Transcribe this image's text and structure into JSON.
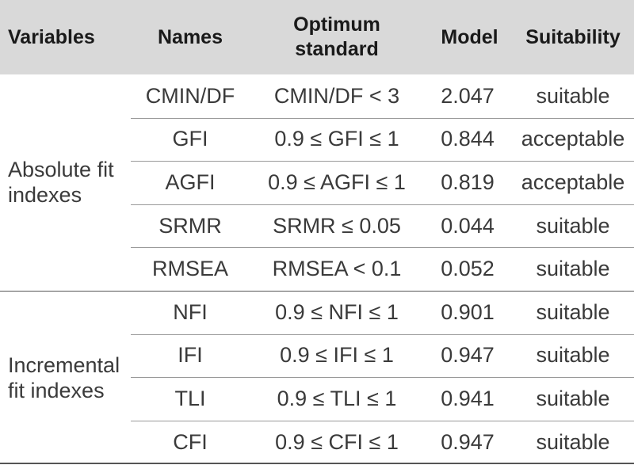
{
  "headers": {
    "variables": "Variables",
    "names": "Names",
    "optimum_standard": "Optimum standard",
    "model": "Model",
    "suitability": "Suitability"
  },
  "groups": [
    {
      "label": "Absolute fit indexes"
    },
    {
      "label": "Incremental fit indexes"
    }
  ],
  "rows": [
    {
      "name": "CMIN/DF",
      "standard": "CMIN/DF < 3",
      "model": "2.047",
      "suitability": "suitable"
    },
    {
      "name": "GFI",
      "standard": "0.9 ≤ GFI ≤ 1",
      "model": "0.844",
      "suitability": "acceptable"
    },
    {
      "name": "AGFI",
      "standard": "0.9 ≤ AGFI ≤ 1",
      "model": "0.819",
      "suitability": "acceptable"
    },
    {
      "name": "SRMR",
      "standard": "SRMR ≤ 0.05",
      "model": "0.044",
      "suitability": "suitable"
    },
    {
      "name": "RMSEA",
      "standard": "RMSEA < 0.1",
      "model": "0.052",
      "suitability": "suitable"
    },
    {
      "name": "NFI",
      "standard": "0.9 ≤ NFI ≤ 1",
      "model": "0.901",
      "suitability": "suitable"
    },
    {
      "name": "IFI",
      "standard": "0.9 ≤ IFI ≤ 1",
      "model": "0.947",
      "suitability": "suitable"
    },
    {
      "name": "TLI",
      "standard": "0.9 ≤ TLI ≤ 1",
      "model": "0.941",
      "suitability": "suitable"
    },
    {
      "name": "CFI",
      "standard": "0.9 ≤ CFI ≤ 1",
      "model": "0.947",
      "suitability": "suitable"
    }
  ]
}
